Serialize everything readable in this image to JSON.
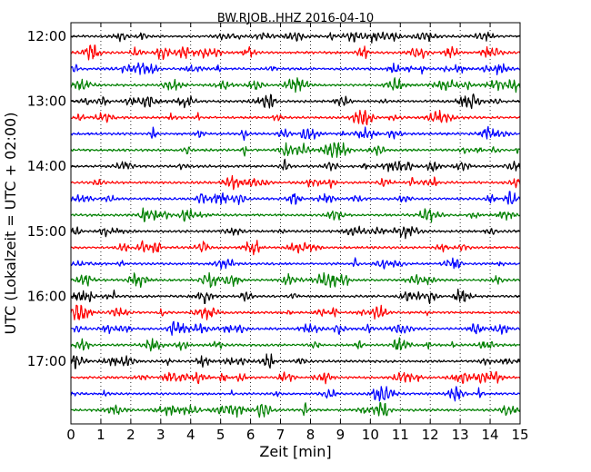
{
  "chart_data": {
    "type": "line",
    "title": "BW.RJOB..HHZ 2016-04-10",
    "xlabel": "Zeit  [min]",
    "ylabel": "UTC (Lokalzeit = UTC + 02:00)",
    "xlim": [
      0,
      15
    ],
    "x_ticks": [
      "0",
      "1",
      "2",
      "3",
      "4",
      "5",
      "6",
      "7",
      "8",
      "9",
      "10",
      "11",
      "12",
      "13",
      "14",
      "15"
    ],
    "y_ticks": [
      "12:00",
      "13:00",
      "14:00",
      "15:00",
      "16:00",
      "17:00"
    ],
    "trace_count": 24,
    "trace_minutes": 15,
    "grid": "vertical dotted at each minute",
    "colors": [
      "#000000",
      "#ff0000",
      "#0000ff",
      "#008000"
    ]
  }
}
